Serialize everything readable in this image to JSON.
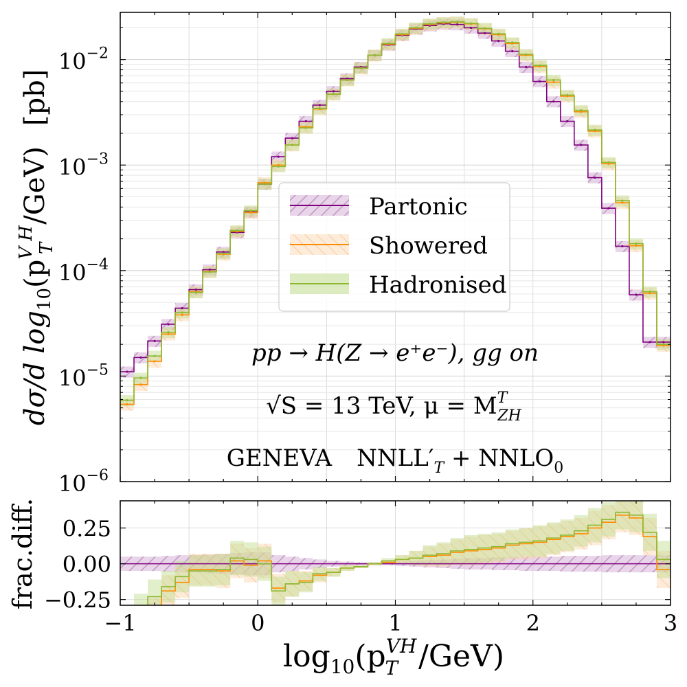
{
  "chart_data": [
    {
      "type": "line",
      "panel": "main",
      "xlabel": "log10(p_T^VH / GeV)",
      "ylabel": "dσ/d log10(p_T^VH/GeV)   [pb]",
      "y_scale": "log",
      "xlim": [
        -1,
        3
      ],
      "ylim": [
        1e-06,
        0.028
      ],
      "x_ticks": [
        "−1",
        "0",
        "1",
        "2",
        "3"
      ],
      "y_tick_values": [
        1e-06,
        1e-05,
        0.0001,
        0.001,
        0.01
      ],
      "y_ticks": [
        {
          "base": "10",
          "exp": "−6"
        },
        {
          "base": "10",
          "exp": "−5"
        },
        {
          "base": "10",
          "exp": "−4"
        },
        {
          "base": "10",
          "exp": "−3"
        },
        {
          "base": "10",
          "exp": "−2"
        }
      ],
      "grid": true,
      "legend_placement": "center",
      "bin_edges": [
        -1.0,
        -0.9,
        -0.8,
        -0.7,
        -0.6,
        -0.5,
        -0.4,
        -0.3,
        -0.2,
        -0.1,
        0.0,
        0.1,
        0.2,
        0.3,
        0.4,
        0.5,
        0.6,
        0.7,
        0.8,
        0.9,
        1.0,
        1.1,
        1.2,
        1.3,
        1.4,
        1.5,
        1.6,
        1.7,
        1.8,
        1.9,
        2.0,
        2.1,
        2.2,
        2.3,
        2.4,
        2.5,
        2.6,
        2.7,
        2.8,
        2.9,
        3.0
      ],
      "series": [
        {
          "name": "Partonic",
          "color": "#800080",
          "hatch_color": "#a870a8",
          "band_rel": 0.12,
          "values": [
            1.1e-05,
            1.5e-05,
            2.15e-05,
            3.1e-05,
            4.4e-05,
            6.6e-05,
            0.000102,
            0.00015,
            0.00023,
            0.00036,
            0.00066,
            0.0012,
            0.0018,
            0.0026,
            0.0037,
            0.005,
            0.0066,
            0.0085,
            0.011,
            0.0138,
            0.017,
            0.0195,
            0.021,
            0.0218,
            0.0215,
            0.02,
            0.0178,
            0.015,
            0.012,
            0.0085,
            0.0062,
            0.004,
            0.0026,
            0.00155,
            0.00076,
            0.00039,
            0.00017,
            5.9e-05,
            2.1e-05,
            2.1e-05
          ]
        },
        {
          "name": "Showered",
          "color": "#ff8c00",
          "hatch_color": "#f5b070",
          "band_rel": 0.13,
          "values": [
            5.4e-06,
            8.3e-06,
            1.38e-05,
            2.5e-05,
            3.8e-05,
            6.3e-05,
            9.8e-05,
            0.000143,
            0.000235,
            0.000355,
            0.00068,
            0.001,
            0.00155,
            0.0023,
            0.0034,
            0.0047,
            0.0064,
            0.0083,
            0.011,
            0.014,
            0.0172,
            0.0198,
            0.0215,
            0.0222,
            0.0226,
            0.0218,
            0.0196,
            0.0172,
            0.0142,
            0.011,
            0.0086,
            0.0061,
            0.0045,
            0.0032,
            0.0021,
            0.00103,
            0.00044,
            0.000172,
            6.1e-05,
            1.95e-05
          ]
        },
        {
          "name": "Hadronised",
          "color": "#8db832",
          "fill_color": "#cfe3a6",
          "band_rel": 0.12,
          "values": [
            5.9e-06,
            9.6e-06,
            1.55e-05,
            2.6e-05,
            4e-05,
            6.2e-05,
            9.7e-05,
            0.000145,
            0.00024,
            0.00037,
            0.00066,
            0.00097,
            0.00155,
            0.00225,
            0.00345,
            0.0047,
            0.0064,
            0.0083,
            0.011,
            0.0142,
            0.0175,
            0.02,
            0.0218,
            0.0225,
            0.0228,
            0.022,
            0.0198,
            0.0175,
            0.0145,
            0.0112,
            0.0088,
            0.0064,
            0.0046,
            0.0033,
            0.00215,
            0.00106,
            0.00046,
            0.00018,
            6.3e-05,
            2e-05
          ]
        }
      ]
    },
    {
      "type": "line",
      "panel": "ratio",
      "xlabel": "log10(p_T^VH / GeV)",
      "ylabel": "frac.diff.",
      "xlim": [
        -1,
        3
      ],
      "ylim": [
        -0.29,
        0.44
      ],
      "x_ticks": [
        "−1",
        "0",
        "1",
        "2",
        "3"
      ],
      "y_tick_values": [
        -0.25,
        0.0,
        0.25
      ],
      "y_ticks": [
        "−0.25",
        "0.00",
        "0.25"
      ],
      "grid": true,
      "series": [
        {
          "name": "Partonic",
          "center": [
            0,
            0,
            0,
            0,
            0,
            0,
            0,
            0,
            0,
            0,
            0,
            0,
            0,
            0,
            0,
            0,
            0,
            0,
            0,
            0,
            0,
            0,
            0,
            0,
            0,
            0,
            0,
            0,
            0,
            0,
            0,
            0,
            0,
            0,
            0,
            0,
            0,
            0,
            0,
            0
          ],
          "half_width": [
            0.05,
            0.05,
            0.05,
            0.055,
            0.06,
            0.06,
            0.065,
            0.07,
            0.075,
            0.08,
            0.08,
            0.06,
            0.05,
            0.04,
            0.03,
            0.02,
            0.015,
            0.01,
            0.01,
            0.01,
            0.015,
            0.02,
            0.025,
            0.03,
            0.035,
            0.04,
            0.04,
            0.045,
            0.045,
            0.05,
            0.05,
            0.05,
            0.055,
            0.055,
            0.055,
            0.06,
            0.06,
            0.06,
            0.06,
            0.06
          ]
        },
        {
          "name": "Showered",
          "center": [
            -0.5,
            -0.45,
            -0.36,
            -0.19,
            -0.13,
            -0.04,
            -0.04,
            -0.05,
            0.02,
            -0.01,
            0.02,
            -0.17,
            -0.14,
            -0.12,
            -0.08,
            -0.06,
            -0.03,
            -0.02,
            0.0,
            0.01,
            0.03,
            0.04,
            0.05,
            0.06,
            0.08,
            0.09,
            0.1,
            0.11,
            0.13,
            0.14,
            0.15,
            0.17,
            0.19,
            0.21,
            0.25,
            0.29,
            0.34,
            0.32,
            0.19,
            -0.04
          ],
          "half_width": [
            0.12,
            0.12,
            0.12,
            0.11,
            0.11,
            0.11,
            0.11,
            0.12,
            0.12,
            0.12,
            0.12,
            0.1,
            0.09,
            0.07,
            0.05,
            0.03,
            0.02,
            0.01,
            0.01,
            0.01,
            0.03,
            0.05,
            0.07,
            0.08,
            0.09,
            0.1,
            0.1,
            0.1,
            0.1,
            0.11,
            0.11,
            0.11,
            0.11,
            0.11,
            0.12,
            0.12,
            0.12,
            0.12,
            0.13,
            0.13
          ]
        },
        {
          "name": "Hadronised",
          "center": [
            -0.43,
            -0.33,
            -0.23,
            -0.16,
            -0.09,
            -0.05,
            -0.05,
            -0.04,
            0.04,
            0.03,
            0.0,
            -0.19,
            -0.14,
            -0.13,
            -0.07,
            -0.06,
            -0.03,
            -0.02,
            0.0,
            0.02,
            0.03,
            0.04,
            0.06,
            0.07,
            0.09,
            0.1,
            0.11,
            0.12,
            0.14,
            0.15,
            0.16,
            0.18,
            0.2,
            0.23,
            0.27,
            0.31,
            0.36,
            0.34,
            0.22,
            0.03
          ],
          "half_width": [
            0.12,
            0.12,
            0.12,
            0.11,
            0.11,
            0.11,
            0.11,
            0.11,
            0.12,
            0.12,
            0.12,
            0.1,
            0.09,
            0.07,
            0.05,
            0.03,
            0.02,
            0.01,
            0.01,
            0.02,
            0.03,
            0.05,
            0.07,
            0.08,
            0.09,
            0.1,
            0.1,
            0.1,
            0.1,
            0.1,
            0.11,
            0.11,
            0.11,
            0.11,
            0.12,
            0.12,
            0.12,
            0.12,
            0.13,
            0.13
          ]
        }
      ]
    }
  ],
  "legend": [
    {
      "label": "Partonic"
    },
    {
      "label": "Showered"
    },
    {
      "label": "Hadronised"
    }
  ],
  "annotations": {
    "process": "pp → H(Z → e⁺e⁻),  gg on",
    "energy": "√S = 13 TeV,  μ = M",
    "energy_sup": "T",
    "energy_sub": "ZH",
    "generator": "GENEVA",
    "accuracy": "NNLL′",
    "accuracy_sub": "T",
    "accuracy_tail": " + NNLO",
    "accuracy_tail_sub": "0"
  },
  "labels": {
    "xlabel_main": "log",
    "xlabel_sub": "10",
    "xlabel_rest": "(p",
    "xlabel_p_sup": "VH",
    "xlabel_p_sub": "T",
    "xlabel_end": "/GeV)",
    "ylabel_main": "dσ/d log",
    "ylabel_sub": "10",
    "ylabel_rest": "(p",
    "ylabel_p_sup": "V H",
    "ylabel_p_sub": "T",
    "ylabel_end": "/GeV)",
    "ylabel_unit": "[pb]",
    "ratio_ylabel": "frac.diff."
  }
}
